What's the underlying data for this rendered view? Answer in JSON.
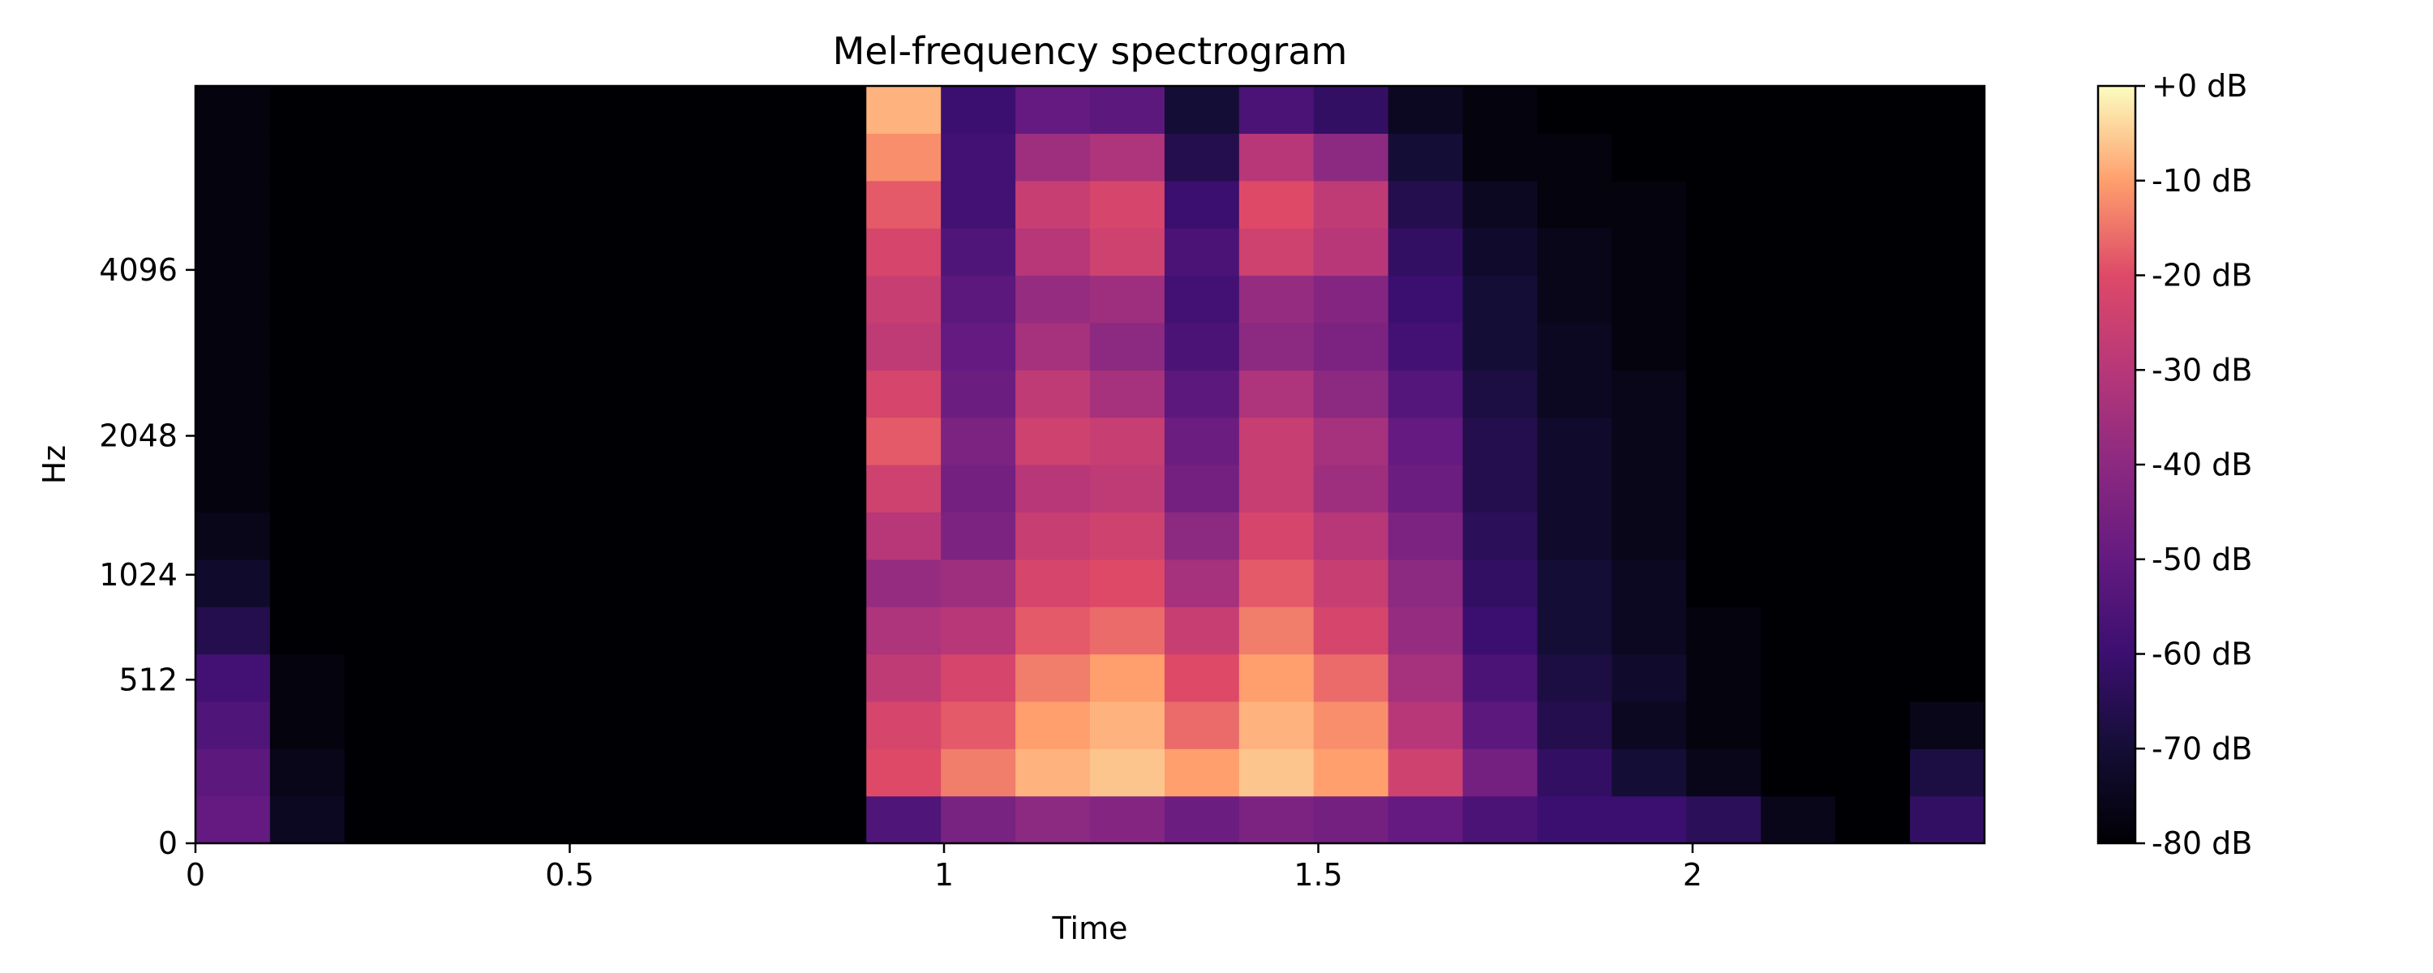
{
  "chart_data": {
    "type": "heatmap",
    "title": "Mel-frequency spectrogram",
    "xlabel": "Time",
    "ylabel": "Hz",
    "x_ticks": [
      {
        "value": 0,
        "label": "0"
      },
      {
        "value": 0.5,
        "label": "0.5"
      },
      {
        "value": 1,
        "label": "1"
      },
      {
        "value": 1.5,
        "label": "1.5"
      },
      {
        "value": 2,
        "label": "2"
      }
    ],
    "y_scale": "mel",
    "y_ticks": [
      {
        "value": 0,
        "label": "0"
      },
      {
        "value": 512,
        "label": "512"
      },
      {
        "value": 1024,
        "label": "1024"
      },
      {
        "value": 2048,
        "label": "2048"
      },
      {
        "value": 4096,
        "label": "4096"
      }
    ],
    "xlim": [
      0,
      2.39
    ],
    "ylim_hz": [
      0,
      8192
    ],
    "colormap": "magma",
    "colorbar": {
      "range_db": [
        -80,
        0
      ],
      "ticks": [
        {
          "value": 0,
          "label": "+0 dB"
        },
        {
          "value": -10,
          "label": "-10 dB"
        },
        {
          "value": -20,
          "label": "-20 dB"
        },
        {
          "value": -30,
          "label": "-30 dB"
        },
        {
          "value": -40,
          "label": "-40 dB"
        },
        {
          "value": -50,
          "label": "-50 dB"
        },
        {
          "value": -60,
          "label": "-60 dB"
        },
        {
          "value": -70,
          "label": "-70 dB"
        },
        {
          "value": -80,
          "label": "-80 dB"
        }
      ]
    },
    "time_bins": 24,
    "freq_bins": 16,
    "db_grid": [
      [
        -50,
        -52,
        -55,
        -58,
        -66,
        -72,
        -76,
        -78,
        -78,
        -78,
        -78,
        -78,
        -78,
        -78,
        -78,
        -78
      ],
      [
        -74,
        -76,
        -78,
        -78,
        -80,
        -80,
        -80,
        -80,
        -80,
        -80,
        -80,
        -80,
        -80,
        -80,
        -80,
        -80
      ],
      [
        -80,
        -80,
        -80,
        -80,
        -80,
        -80,
        -80,
        -80,
        -80,
        -80,
        -80,
        -80,
        -80,
        -80,
        -80,
        -80
      ],
      [
        -80,
        -80,
        -80,
        -80,
        -80,
        -80,
        -80,
        -80,
        -80,
        -80,
        -80,
        -80,
        -80,
        -80,
        -80,
        -80
      ],
      [
        -80,
        -80,
        -80,
        -80,
        -80,
        -80,
        -80,
        -80,
        -80,
        -80,
        -80,
        -80,
        -80,
        -80,
        -80,
        -80
      ],
      [
        -80,
        -80,
        -80,
        -80,
        -80,
        -80,
        -80,
        -80,
        -80,
        -80,
        -80,
        -80,
        -80,
        -80,
        -80,
        -80
      ],
      [
        -80,
        -80,
        -80,
        -80,
        -80,
        -80,
        -80,
        -80,
        -80,
        -80,
        -80,
        -80,
        -80,
        -80,
        -80,
        -80
      ],
      [
        -80,
        -80,
        -80,
        -80,
        -80,
        -80,
        -80,
        -80,
        -80,
        -80,
        -80,
        -80,
        -80,
        -80,
        -80,
        -80
      ],
      [
        -80,
        -80,
        -80,
        -80,
        -80,
        -80,
        -80,
        -80,
        -80,
        -80,
        -80,
        -80,
        -80,
        -80,
        -80,
        -80
      ],
      [
        -55,
        -20,
        -22,
        -28,
        -32,
        -38,
        -30,
        -24,
        -18,
        -22,
        -28,
        -26,
        -22,
        -18,
        -12,
        -8
      ],
      [
        -45,
        -14,
        -18,
        -22,
        -30,
        -36,
        -44,
        -46,
        -44,
        -48,
        -50,
        -52,
        -55,
        -58,
        -58,
        -60
      ],
      [
        -40,
        -8,
        -10,
        -14,
        -18,
        -22,
        -26,
        -30,
        -24,
        -28,
        -34,
        -38,
        -30,
        -26,
        -36,
        -50
      ],
      [
        -42,
        -6,
        -8,
        -10,
        -16,
        -20,
        -24,
        -28,
        -26,
        -34,
        -40,
        -36,
        -24,
        -22,
        -32,
        -52
      ],
      [
        -48,
        -10,
        -16,
        -20,
        -26,
        -34,
        -40,
        -46,
        -48,
        -52,
        -56,
        -58,
        -56,
        -60,
        -66,
        -70
      ],
      [
        -44,
        -6,
        -8,
        -10,
        -14,
        -18,
        -22,
        -26,
        -26,
        -32,
        -40,
        -38,
        -24,
        -20,
        -30,
        -56
      ],
      [
        -46,
        -10,
        -12,
        -16,
        -22,
        -26,
        -30,
        -36,
        -34,
        -40,
        -44,
        -42,
        -30,
        -28,
        -40,
        -62
      ],
      [
        -50,
        -24,
        -30,
        -34,
        -38,
        -40,
        -44,
        -48,
        -50,
        -54,
        -58,
        -60,
        -62,
        -66,
        -70,
        -74
      ],
      [
        -56,
        -46,
        -52,
        -56,
        -60,
        -62,
        -64,
        -66,
        -66,
        -68,
        -70,
        -70,
        -72,
        -74,
        -78,
        -78
      ],
      [
        -60,
        -62,
        -66,
        -68,
        -70,
        -70,
        -72,
        -72,
        -72,
        -74,
        -74,
        -76,
        -76,
        -78,
        -78,
        -80
      ],
      [
        -60,
        -70,
        -74,
        -72,
        -74,
        -74,
        -76,
        -76,
        -76,
        -76,
        -78,
        -78,
        -78,
        -78,
        -80,
        -80
      ],
      [
        -64,
        -76,
        -78,
        -78,
        -78,
        -80,
        -80,
        -80,
        -80,
        -80,
        -80,
        -80,
        -80,
        -80,
        -80,
        -80
      ],
      [
        -76,
        -80,
        -80,
        -80,
        -80,
        -80,
        -80,
        -80,
        -80,
        -80,
        -80,
        -80,
        -80,
        -80,
        -80,
        -80
      ],
      [
        -80,
        -80,
        -80,
        -80,
        -80,
        -80,
        -80,
        -80,
        -80,
        -80,
        -80,
        -80,
        -80,
        -80,
        -80,
        -80
      ],
      [
        -62,
        -68,
        -76,
        -80,
        -80,
        -80,
        -80,
        -80,
        -80,
        -80,
        -80,
        -80,
        -80,
        -80,
        -80,
        -80
      ]
    ]
  }
}
